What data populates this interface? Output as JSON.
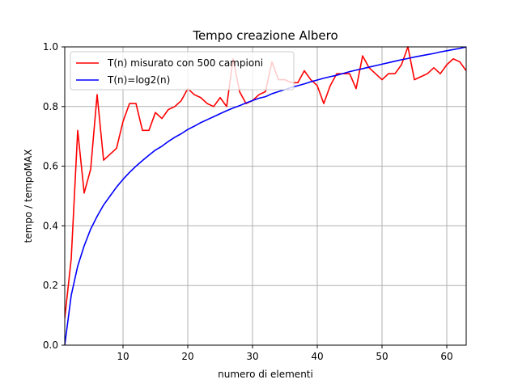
{
  "chart_data": {
    "type": "line",
    "title": "Tempo creazione Albero",
    "xlabel": "numero di elementi",
    "ylabel": "tempo / tempoMAX",
    "xlim": [
      1,
      63
    ],
    "ylim": [
      0,
      1.0
    ],
    "x_ticks": [
      10,
      20,
      30,
      40,
      50,
      60
    ],
    "y_ticks": [
      0.0,
      0.2,
      0.4,
      0.6,
      0.8,
      1.0
    ],
    "x_tick_labels": [
      "10",
      "20",
      "30",
      "40",
      "50",
      "60"
    ],
    "y_tick_labels": [
      "0.0",
      "0.2",
      "0.4",
      "0.6",
      "0.8",
      "1.0"
    ],
    "grid": true,
    "legend_position": "top-left",
    "series": [
      {
        "name": "T(n) misurato con 500 campioni",
        "color": "#ff0000",
        "x": [
          1,
          2,
          3,
          4,
          5,
          6,
          7,
          8,
          9,
          10,
          11,
          12,
          13,
          14,
          15,
          16,
          17,
          18,
          19,
          20,
          21,
          22,
          23,
          24,
          25,
          26,
          27,
          28,
          29,
          30,
          31,
          32,
          33,
          34,
          35,
          36,
          37,
          38,
          39,
          40,
          41,
          42,
          43,
          44,
          45,
          46,
          47,
          48,
          49,
          50,
          51,
          52,
          53,
          54,
          55,
          56,
          57,
          58,
          59,
          60,
          61,
          62,
          63
        ],
        "y": [
          0.09,
          0.29,
          0.72,
          0.51,
          0.59,
          0.84,
          0.62,
          0.64,
          0.66,
          0.75,
          0.81,
          0.81,
          0.72,
          0.72,
          0.78,
          0.76,
          0.79,
          0.8,
          0.82,
          0.86,
          0.84,
          0.83,
          0.81,
          0.8,
          0.83,
          0.8,
          0.96,
          0.85,
          0.81,
          0.82,
          0.84,
          0.85,
          0.95,
          0.89,
          0.89,
          0.88,
          0.88,
          0.92,
          0.89,
          0.87,
          0.81,
          0.87,
          0.91,
          0.91,
          0.91,
          0.86,
          0.97,
          0.93,
          0.91,
          0.89,
          0.91,
          0.91,
          0.94,
          1.0,
          0.89,
          0.9,
          0.91,
          0.93,
          0.91,
          0.94,
          0.96,
          0.95,
          0.92
        ]
      },
      {
        "name": "T(n)=log2(n)",
        "color": "#0000ff",
        "x": [
          1,
          2,
          3,
          4,
          5,
          6,
          7,
          8,
          9,
          10,
          11,
          12,
          13,
          14,
          15,
          16,
          17,
          18,
          19,
          20,
          21,
          22,
          23,
          24,
          25,
          26,
          27,
          28,
          29,
          30,
          31,
          32,
          33,
          34,
          35,
          36,
          37,
          38,
          39,
          40,
          41,
          42,
          43,
          44,
          45,
          46,
          47,
          48,
          49,
          50,
          51,
          52,
          53,
          54,
          55,
          56,
          57,
          58,
          59,
          60,
          61,
          62,
          63
        ],
        "y": [
          0.0,
          0.167,
          0.265,
          0.333,
          0.389,
          0.432,
          0.47,
          0.5,
          0.53,
          0.556,
          0.579,
          0.6,
          0.619,
          0.637,
          0.654,
          0.667,
          0.683,
          0.697,
          0.709,
          0.723,
          0.734,
          0.746,
          0.756,
          0.766,
          0.776,
          0.786,
          0.795,
          0.803,
          0.812,
          0.82,
          0.828,
          0.833,
          0.843,
          0.85,
          0.857,
          0.864,
          0.87,
          0.876,
          0.883,
          0.889,
          0.895,
          0.9,
          0.905,
          0.911,
          0.917,
          0.922,
          0.927,
          0.932,
          0.937,
          0.942,
          0.947,
          0.952,
          0.957,
          0.961,
          0.966,
          0.97,
          0.974,
          0.978,
          0.983,
          0.987,
          0.991,
          0.995,
          1.0
        ]
      }
    ]
  }
}
